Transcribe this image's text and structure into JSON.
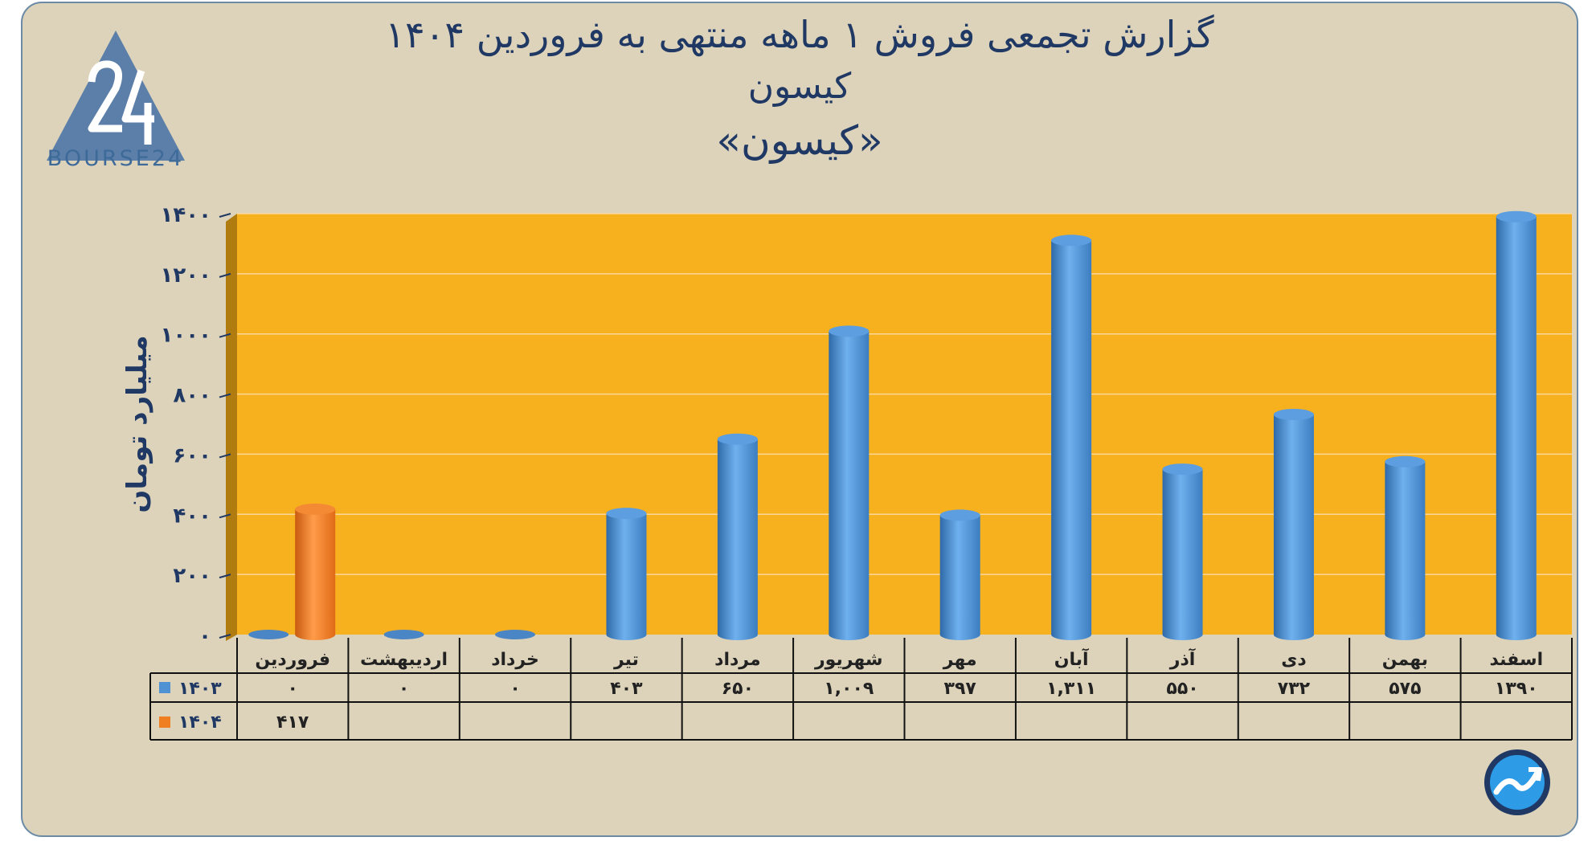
{
  "title": {
    "line1": "گزارش تجمعی فروش ۱ ماهه منتهی به فروردین ۱۴۰۴",
    "line2": "کیسون",
    "line3": "«کیسون»"
  },
  "logo": {
    "text": "BOURSE24",
    "glyph": "24"
  },
  "colors": {
    "background": "#ddd3ba",
    "plot": "#f7b11e",
    "series1403": "#4f92d4",
    "series1404": "#f07f22",
    "text": "#1f3864"
  },
  "chart_data": {
    "type": "bar",
    "ylabel": "میلیارد تومان",
    "ylim": [
      0,
      1400
    ],
    "yticks": [
      "۰",
      "۲۰۰",
      "۴۰۰",
      "۶۰۰",
      "۸۰۰",
      "۱۰۰۰",
      "۱۲۰۰",
      "۱۴۰۰"
    ],
    "categories": [
      "فروردین",
      "اردیبهشت",
      "خرداد",
      "تیر",
      "مرداد",
      "شهریور",
      "مهر",
      "آبان",
      "آذر",
      "دی",
      "بهمن",
      "اسفند"
    ],
    "series": [
      {
        "name": "۱۴۰۳",
        "values": [
          0,
          0,
          0,
          403,
          650,
          1009,
          397,
          1311,
          550,
          732,
          575,
          1390
        ],
        "labels": [
          "۰",
          "۰",
          "۰",
          "۴۰۳",
          "۶۵۰",
          "۱,۰۰۹",
          "۳۹۷",
          "۱,۳۱۱",
          "۵۵۰",
          "۷۳۲",
          "۵۷۵",
          "۱۳۹۰"
        ]
      },
      {
        "name": "۱۴۰۴",
        "values": [
          417,
          null,
          null,
          null,
          null,
          null,
          null,
          null,
          null,
          null,
          null,
          null
        ],
        "labels": [
          "۴۱۷",
          "",
          "",
          "",
          "",
          "",
          "",
          "",
          "",
          "",
          "",
          ""
        ]
      }
    ],
    "grid": true,
    "legend": "data-table"
  }
}
